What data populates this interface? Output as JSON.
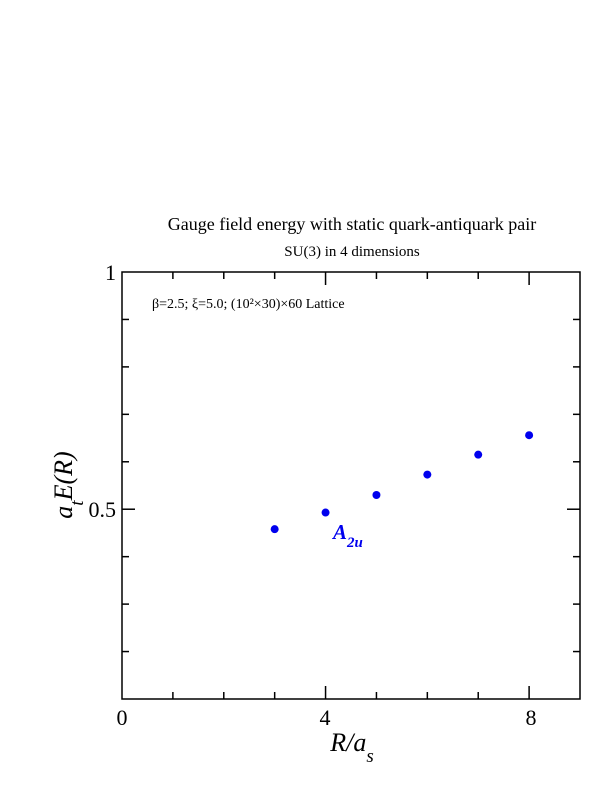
{
  "chart_data": {
    "type": "scatter",
    "title": "Gauge field energy with static quark-antiquark pair",
    "subtitle": "SU(3) in 4 dimensions",
    "annotation": "β=2.5;  ξ=5.0;  (10²×30)×60 Lattice",
    "xlabel": {
      "main": "R/a",
      "sub": "s"
    },
    "ylabel": {
      "pre": "a",
      "sub": "t",
      "main": "E(R)"
    },
    "xlim": [
      0,
      9
    ],
    "ylim": [
      0.1,
      1.0
    ],
    "x_tick_labels": [
      "0",
      "4",
      "8"
    ],
    "y_tick_labels": [
      "0.5",
      "1"
    ],
    "series": [
      {
        "name": "A2u",
        "label": {
          "main": "A",
          "sub": "2u"
        },
        "color": "#0000ee",
        "points": [
          {
            "x": 3,
            "y": 0.458
          },
          {
            "x": 4,
            "y": 0.493
          },
          {
            "x": 5,
            "y": 0.53
          },
          {
            "x": 6,
            "y": 0.573
          },
          {
            "x": 7,
            "y": 0.615
          },
          {
            "x": 8,
            "y": 0.656
          }
        ]
      }
    ],
    "grid": false
  }
}
